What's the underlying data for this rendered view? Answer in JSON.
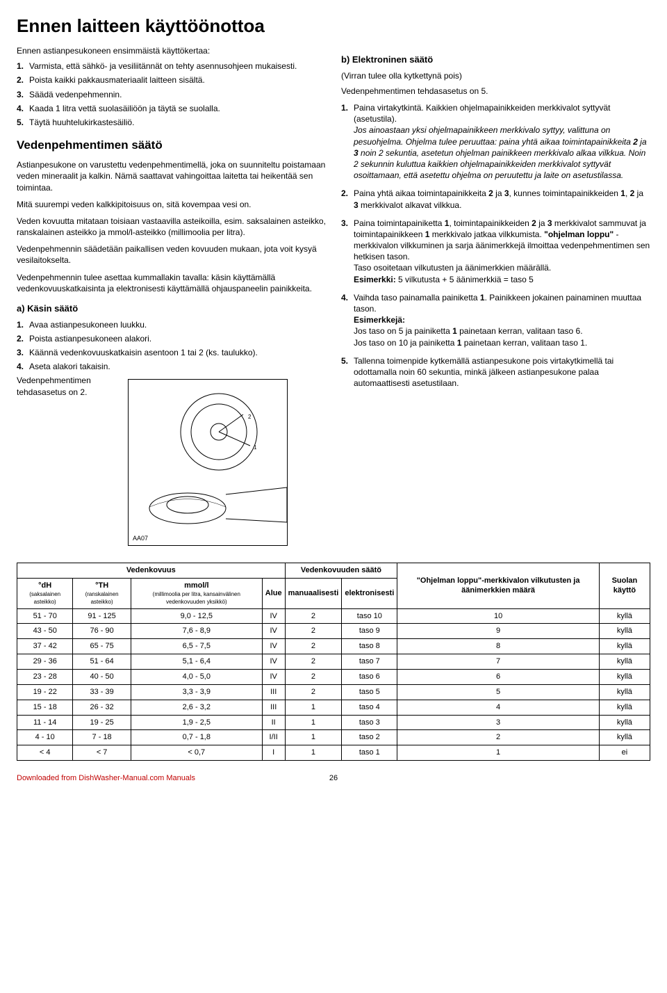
{
  "title": "Ennen laitteen käyttöönottoa",
  "intro": "Ennen astianpesukoneen ensimmäistä käyttökertaa:",
  "left": {
    "steps": [
      "Varmista, että sähkö- ja vesiliitännät on tehty asennusohjeen mukaisesti.",
      "Poista kaikki pakkausmateriaalit laitteen sisältä.",
      "Säädä vedenpehmennin.",
      "Kaada 1 litra vettä suolasäiliöön ja täytä se suolalla.",
      "Täytä huuhtelukirkastesäiliö."
    ],
    "h2": "Vedenpehmentimen säätö",
    "p1": "Astianpesukone on varustettu vedenpehmentimellä, joka on suunniteltu poistamaan veden mineraalit ja kalkin. Nämä saattavat vahingoittaa laitetta tai heikentää sen toimintaa.",
    "p2": "Mitä suurempi veden kalkkipitoisuus on, sitä kovempaa vesi on.",
    "p3": "Veden kovuutta mitataan toisiaan vastaavilla asteikoilla, esim. saksalainen asteikko, ranskalainen asteikko ja mmol/l-asteikko (millimoolia per litra).",
    "p4": "Vedenpehmennin säädetään paikallisen veden kovuuden mukaan, jota voit kysyä vesilaitokselta.",
    "p5": "Vedenpehmennin tulee asettaa kummallakin tavalla: käsin käyttämällä vedenkovuuskatkaisinta ja elektronisesti käyttämällä ohjauspaneelin painikkeita.",
    "a_title": "a) Käsin säätö",
    "a_steps": [
      "Avaa astianpesukoneen luukku.",
      "Poista astianpesukoneen alakori.",
      "Käännä vedenkovuuskatkaisin asentoon 1 tai 2 (ks. taulukko).",
      "Aseta alakori takaisin."
    ],
    "a_footer": "Vedenpehmentimen tehdasasetus on 2.",
    "illus_label": "AA07"
  },
  "right": {
    "b_title": "b) Elektroninen säätö",
    "b_sub": "(Virran tulee olla kytkettynä pois)",
    "b_intro": "Vedenpehmentimen tehdasasetus on 5.",
    "items": [
      {
        "num": "1.",
        "html": "Paina virtakytkintä. Kaikkien ohjelmapainikkeiden merkkivalot syttyvät (asetustila).<br><span class=\"italic\">Jos ainoastaan yksi ohjelmapainikkeen merkkivalo syttyy, valittuna on pesuohjelma. Ohjelma tulee peruuttaa: paina yhtä aikaa toimintapainikkeita <b>2</b> ja <b>3</b> noin 2 sekuntia, asetetun ohjelman painikkeen merkkivalo alkaa vilkkua. Noin 2 sekunnin kuluttua kaikkien ohjelmapainikkeiden merkkivalot syttyvät osoittamaan, että asetettu ohjelma on peruutettu ja laite on asetustilassa.</span>"
      },
      {
        "num": "2.",
        "html": "Paina yhtä aikaa toimintapainikkeita <b>2</b> ja <b>3</b>, kunnes toimintapainikkeiden <b>1</b>, <b>2</b> ja <b>3</b> merkkivalot alkavat vilkkua."
      },
      {
        "num": "3.",
        "html": "Paina toimintapainiketta <b>1</b>, toimintapainikkeiden <b>2</b> ja <b>3</b> merkkivalot sammuvat ja toimintapainikkeen <b>1</b> merkkivalo jatkaa vilkkumista. <b>\"ohjelman loppu\"</b> -merkkivalon vilkkuminen ja sarja äänimerkkejä ilmoittaa vedenpehmentimen sen hetkisen tason.<br>Taso osoitetaan vilkutusten ja äänimerkkien määrällä.<br><b>Esimerkki:</b> 5 vilkutusta + 5 äänimerkkiä = taso 5"
      },
      {
        "num": "4.",
        "html": "Vaihda taso painamalla painiketta <b>1</b>. Painikkeen jokainen painaminen muuttaa tason.<br><b>Esimerkkejä:</b><br>Jos taso on 5 ja painiketta <b>1</b> painetaan kerran, valitaan taso 6.<br>Jos taso on 10 ja painiketta <b>1</b> painetaan kerran, valitaan taso 1."
      },
      {
        "num": "5.",
        "html": "Tallenna toimenpide kytkemällä astianpesukone pois virtakytkimellä tai odottamalla noin 60 sekuntia, minkä jälkeen astianpesukone palaa automaattisesti asetustilaan."
      }
    ]
  },
  "table": {
    "group_headers": [
      "Vedenkovuus",
      "",
      "Vedenkovuuden säätö",
      "\"Ohjelman loppu\"-merkkivalon vilkutusten ja äänimerkkien määrä",
      "Suolan käyttö"
    ],
    "sub_headers": [
      {
        "t": "°dH",
        "s": "(saksalainen asteikko)"
      },
      {
        "t": "°TH",
        "s": "(ranskalainen asteikko)"
      },
      {
        "t": "mmol/l",
        "s": "(millimoolia per litra, kansainvälinen vedenkovuuden yksikkö)"
      },
      {
        "t": "Alue",
        "s": ""
      },
      {
        "t": "manuaalisesti",
        "s": ""
      },
      {
        "t": "elektronisesti",
        "s": ""
      }
    ],
    "rows": [
      [
        "51 - 70",
        "91 - 125",
        "9,0 - 12,5",
        "IV",
        "2",
        "taso 10",
        "10",
        "kyllä"
      ],
      [
        "43 - 50",
        "76 - 90",
        "7,6 - 8,9",
        "IV",
        "2",
        "taso 9",
        "9",
        "kyllä"
      ],
      [
        "37 - 42",
        "65 - 75",
        "6,5 - 7,5",
        "IV",
        "2",
        "taso 8",
        "8",
        "kyllä"
      ],
      [
        "29 - 36",
        "51 - 64",
        "5,1 - 6,4",
        "IV",
        "2",
        "taso 7",
        "7",
        "kyllä"
      ],
      [
        "23 - 28",
        "40 - 50",
        "4,0 - 5,0",
        "IV",
        "2",
        "taso 6",
        "6",
        "kyllä"
      ],
      [
        "19 - 22",
        "33 - 39",
        "3,3 - 3,9",
        "III",
        "2",
        "taso 5",
        "5",
        "kyllä"
      ],
      [
        "15 - 18",
        "26 - 32",
        "2,6 - 3,2",
        "III",
        "1",
        "taso 4",
        "4",
        "kyllä"
      ],
      [
        "11 - 14",
        "19 - 25",
        "1,9 - 2,5",
        "II",
        "1",
        "taso 3",
        "3",
        "kyllä"
      ],
      [
        "4 - 10",
        "7 - 18",
        "0,7 - 1,8",
        "I/II",
        "1",
        "taso 2",
        "2",
        "kyllä"
      ],
      [
        "< 4",
        "< 7",
        "< 0,7",
        "I",
        "1",
        "taso 1",
        "1",
        "ei"
      ]
    ]
  },
  "footer": {
    "link": "Downloaded from DishWasher-Manual.com Manuals",
    "page": "26"
  }
}
